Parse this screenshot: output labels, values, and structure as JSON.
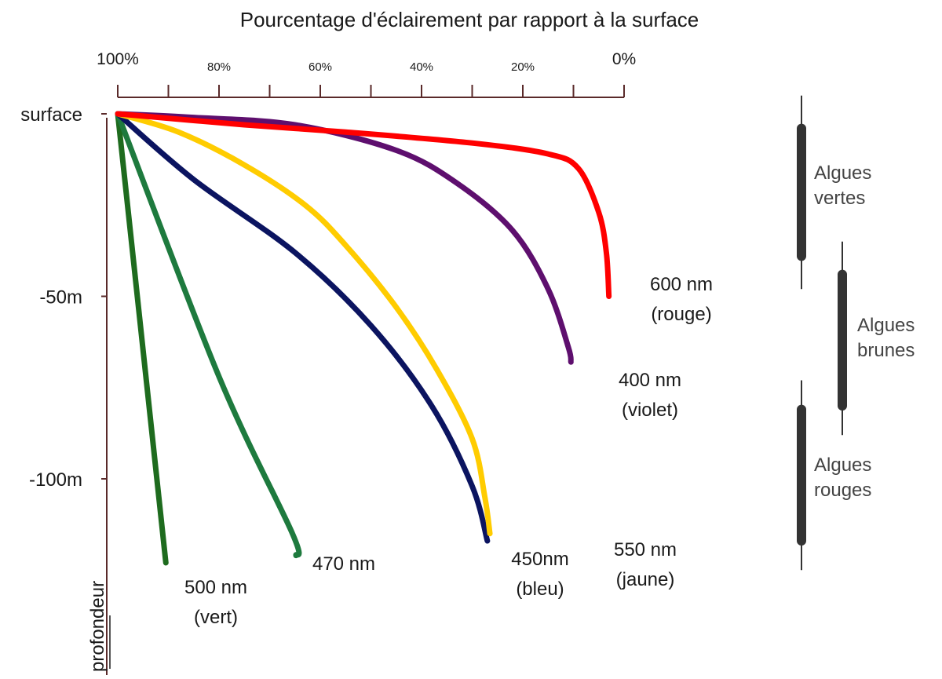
{
  "chart_data": {
    "type": "line",
    "title": "Pourcentage d'éclairement par rapport à la surface",
    "x_axis": {
      "range": [
        100,
        0
      ],
      "labels": [
        {
          "value": 100,
          "text": "100%",
          "size": "major"
        },
        {
          "value": 80,
          "text": "80%",
          "size": "minor"
        },
        {
          "value": 60,
          "text": "60%",
          "size": "minor"
        },
        {
          "value": 40,
          "text": "40%",
          "size": "minor"
        },
        {
          "value": 20,
          "text": "20%",
          "size": "minor"
        },
        {
          "value": 0,
          "text": "0%",
          "size": "major"
        }
      ],
      "ticks": [
        100,
        90,
        80,
        70,
        60,
        50,
        40,
        30,
        20,
        10,
        0
      ]
    },
    "y_axis": {
      "label": "profondeur",
      "range": [
        0,
        155
      ],
      "labels": [
        {
          "value": 0,
          "text": "surface"
        },
        {
          "value": 50,
          "text": "-50m"
        },
        {
          "value": 100,
          "text": "-100m"
        }
      ]
    },
    "series": [
      {
        "name": "500 nm",
        "label_lines": [
          "500 nm",
          "(vert)"
        ],
        "color": "#1e6b1e",
        "points": [
          [
            100,
            0
          ],
          [
            90.5,
            123
          ]
        ]
      },
      {
        "name": "470 nm",
        "label_lines": [
          "470 nm"
        ],
        "color": "#1e7a3e",
        "points": [
          [
            100,
            0
          ],
          [
            80,
            72
          ],
          [
            65.5,
            115
          ],
          [
            64.8,
            121
          ]
        ]
      },
      {
        "name": "450nm",
        "label_lines": [
          "450nm",
          "(bleu)"
        ],
        "color": "#0b1460",
        "points": [
          [
            100,
            0
          ],
          [
            85,
            18
          ],
          [
            65,
            38
          ],
          [
            50,
            58
          ],
          [
            38,
            80
          ],
          [
            30,
            102
          ],
          [
            27,
            117
          ]
        ]
      },
      {
        "name": "550 nm",
        "label_lines": [
          "550 nm",
          "(jaune)"
        ],
        "color": "#ffcc00",
        "points": [
          [
            100,
            0
          ],
          [
            88,
            5
          ],
          [
            75,
            14
          ],
          [
            63,
            25
          ],
          [
            55,
            36
          ],
          [
            45,
            53
          ],
          [
            37,
            70
          ],
          [
            30,
            89
          ],
          [
            27.5,
            105
          ],
          [
            26.5,
            115
          ]
        ]
      },
      {
        "name": "400 nm",
        "label_lines": [
          "400 nm",
          "(violet)"
        ],
        "color": "#5e0f6e",
        "points": [
          [
            100,
            0
          ],
          [
            85,
            1
          ],
          [
            65,
            3
          ],
          [
            45,
            10
          ],
          [
            33,
            19
          ],
          [
            22,
            32
          ],
          [
            15,
            48
          ],
          [
            11,
            64
          ],
          [
            10.5,
            68
          ]
        ]
      },
      {
        "name": "600 nm",
        "label_lines": [
          "600 nm",
          "(rouge)"
        ],
        "color": "#ff0000",
        "points": [
          [
            100,
            0
          ],
          [
            75,
            3
          ],
          [
            55,
            5
          ],
          [
            30,
            8
          ],
          [
            15,
            11
          ],
          [
            9,
            15
          ],
          [
            5,
            27
          ],
          [
            3.5,
            38
          ],
          [
            3,
            50
          ]
        ]
      }
    ],
    "annotations": [
      {
        "label_lines": [
          "Algues",
          "vertes"
        ],
        "bar_range": [
          4,
          39
        ],
        "line_range": [
          -5,
          48
        ]
      },
      {
        "label_lines": [
          "Algues",
          "brunes"
        ],
        "bar_range": [
          44,
          80
        ],
        "line_range": [
          35,
          88
        ]
      },
      {
        "label_lines": [
          "Algues",
          "rouges"
        ],
        "bar_range": [
          81,
          117
        ],
        "line_range": [
          73,
          125
        ]
      }
    ]
  }
}
